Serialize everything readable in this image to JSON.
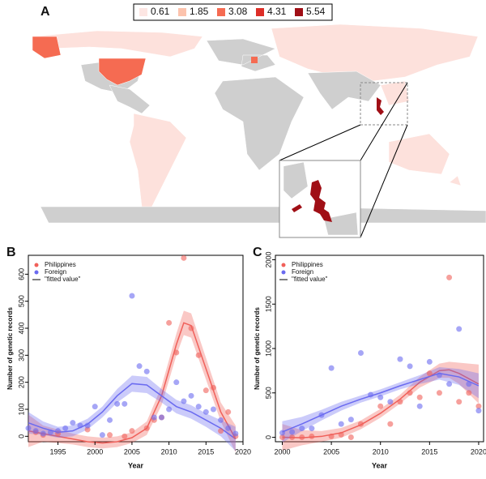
{
  "chart_data": [
    {
      "type": "map",
      "label": "A",
      "legend": [
        {
          "value": 0.61,
          "color": "#fde6e3"
        },
        {
          "value": 1.85,
          "color": "#fcc3ad"
        },
        {
          "value": 3.08,
          "color": "#f56b52"
        },
        {
          "value": 4.31,
          "color": "#dd2e27"
        },
        {
          "value": 5.54,
          "color": "#a00f16"
        }
      ]
    },
    {
      "type": "scatter",
      "label": "B",
      "xlabel": "Year",
      "ylabel": "Number of genetic records",
      "xlim": [
        1991,
        2020
      ],
      "ylim": [
        -20,
        670
      ],
      "xticks": [
        1995,
        2000,
        2005,
        2010,
        2015,
        2020
      ],
      "yticks": [
        0,
        100,
        200,
        300,
        400,
        500,
        600
      ],
      "fit_label": "\"fitted value\"",
      "series": [
        {
          "name": "Philippines",
          "color": "#f0605a",
          "x": [
            1992,
            1993,
            1995,
            1999,
            2002,
            2004,
            2005,
            2007,
            2008,
            2009,
            2010,
            2011,
            2012,
            2013,
            2014,
            2015,
            2016,
            2017,
            2018,
            2019
          ],
          "values": [
            15,
            5,
            10,
            25,
            5,
            0,
            20,
            30,
            60,
            70,
            420,
            310,
            660,
            400,
            300,
            170,
            180,
            20,
            90,
            0
          ]
        },
        {
          "name": "Foreign",
          "color": "#6a6af0",
          "x": [
            1991,
            1992,
            1993,
            1994,
            1995,
            1996,
            1997,
            1998,
            1999,
            2000,
            2001,
            2002,
            2003,
            2004,
            2005,
            2006,
            2007,
            2008,
            2009,
            2010,
            2011,
            2012,
            2013,
            2014,
            2015,
            2016,
            2017,
            2018,
            2019
          ],
          "values": [
            30,
            20,
            10,
            15,
            20,
            30,
            50,
            40,
            40,
            110,
            5,
            60,
            120,
            120,
            520,
            260,
            240,
            70,
            70,
            100,
            200,
            130,
            150,
            110,
            90,
            100,
            60,
            30,
            10
          ]
        }
      ],
      "fits": [
        {
          "color": "#f0605a",
          "x": [
            1991,
            1993,
            1995,
            1997,
            1999,
            2001,
            2003,
            2005,
            2007,
            2009,
            2011,
            2012,
            2013,
            2015,
            2017,
            2019
          ],
          "values": [
            20,
            10,
            0,
            -10,
            -20,
            -25,
            -20,
            -5,
            30,
            150,
            340,
            420,
            410,
            250,
            90,
            -10
          ],
          "lower": [
            -40,
            -20,
            -25,
            -30,
            -40,
            -45,
            -40,
            -25,
            5,
            115,
            300,
            375,
            365,
            210,
            55,
            -60
          ],
          "upper": [
            80,
            40,
            25,
            10,
            0,
            -5,
            0,
            15,
            55,
            185,
            380,
            465,
            455,
            290,
            125,
            40
          ]
        },
        {
          "color": "#6a6af0",
          "x": [
            1991,
            1993,
            1995,
            1997,
            1999,
            2001,
            2003,
            2005,
            2007,
            2009,
            2011,
            2013,
            2015,
            2017,
            2019
          ],
          "values": [
            50,
            30,
            15,
            20,
            45,
            90,
            150,
            195,
            190,
            150,
            110,
            90,
            60,
            30,
            -10
          ],
          "lower": [
            10,
            5,
            -5,
            0,
            25,
            70,
            125,
            165,
            160,
            125,
            85,
            65,
            35,
            0,
            -55
          ],
          "upper": [
            90,
            55,
            35,
            40,
            65,
            110,
            175,
            225,
            220,
            175,
            135,
            115,
            85,
            60,
            35
          ]
        }
      ]
    },
    {
      "type": "scatter",
      "label": "C",
      "xlabel": "Year",
      "ylabel": "Number of genetic records",
      "xlim": [
        1999.3,
        2020.5
      ],
      "ylim": [
        -50,
        2050
      ],
      "xticks": [
        2000,
        2005,
        2010,
        2015,
        2020
      ],
      "yticks": [
        0,
        500,
        1000,
        1500,
        2000
      ],
      "fit_label": "\"fitted value\"",
      "series": [
        {
          "name": "Philippines",
          "color": "#f0605a",
          "x": [
            2000,
            2001,
            2002,
            2003,
            2005,
            2006,
            2007,
            2008,
            2010,
            2011,
            2012,
            2013,
            2014,
            2015,
            2016,
            2017,
            2018,
            2019,
            2020
          ],
          "values": [
            0,
            0,
            0,
            10,
            10,
            30,
            0,
            150,
            350,
            150,
            400,
            500,
            450,
            720,
            500,
            1800,
            400,
            500,
            350
          ]
        },
        {
          "name": "Foreign",
          "color": "#6a6af0",
          "x": [
            2000,
            2001,
            2002,
            2003,
            2004,
            2005,
            2006,
            2007,
            2008,
            2009,
            2010,
            2011,
            2012,
            2013,
            2014,
            2015,
            2016,
            2017,
            2018,
            2019,
            2020
          ],
          "values": [
            50,
            60,
            100,
            100,
            250,
            780,
            150,
            200,
            950,
            480,
            450,
            400,
            880,
            800,
            350,
            850,
            700,
            600,
            1220,
            600,
            300
          ]
        }
      ],
      "fits": [
        {
          "color": "#f0605a",
          "x": [
            2000,
            2002,
            2004,
            2006,
            2008,
            2010,
            2012,
            2014,
            2016,
            2017,
            2018,
            2020
          ],
          "values": [
            0,
            -5,
            10,
            50,
            140,
            270,
            430,
            620,
            750,
            760,
            720,
            600
          ],
          "lower": [
            -150,
            -90,
            -50,
            -5,
            90,
            220,
            380,
            560,
            670,
            670,
            600,
            380
          ],
          "upper": [
            150,
            80,
            70,
            105,
            190,
            320,
            480,
            680,
            830,
            850,
            840,
            820
          ]
        },
        {
          "color": "#6a6af0",
          "x": [
            2000,
            2002,
            2004,
            2006,
            2008,
            2010,
            2012,
            2014,
            2016,
            2018,
            2020
          ],
          "values": [
            60,
            150,
            250,
            350,
            430,
            500,
            580,
            650,
            720,
            680,
            580
          ],
          "lower": [
            -60,
            70,
            190,
            300,
            390,
            460,
            540,
            600,
            650,
            590,
            440
          ],
          "upper": [
            180,
            230,
            310,
            400,
            470,
            540,
            620,
            700,
            790,
            770,
            720
          ]
        }
      ]
    }
  ]
}
